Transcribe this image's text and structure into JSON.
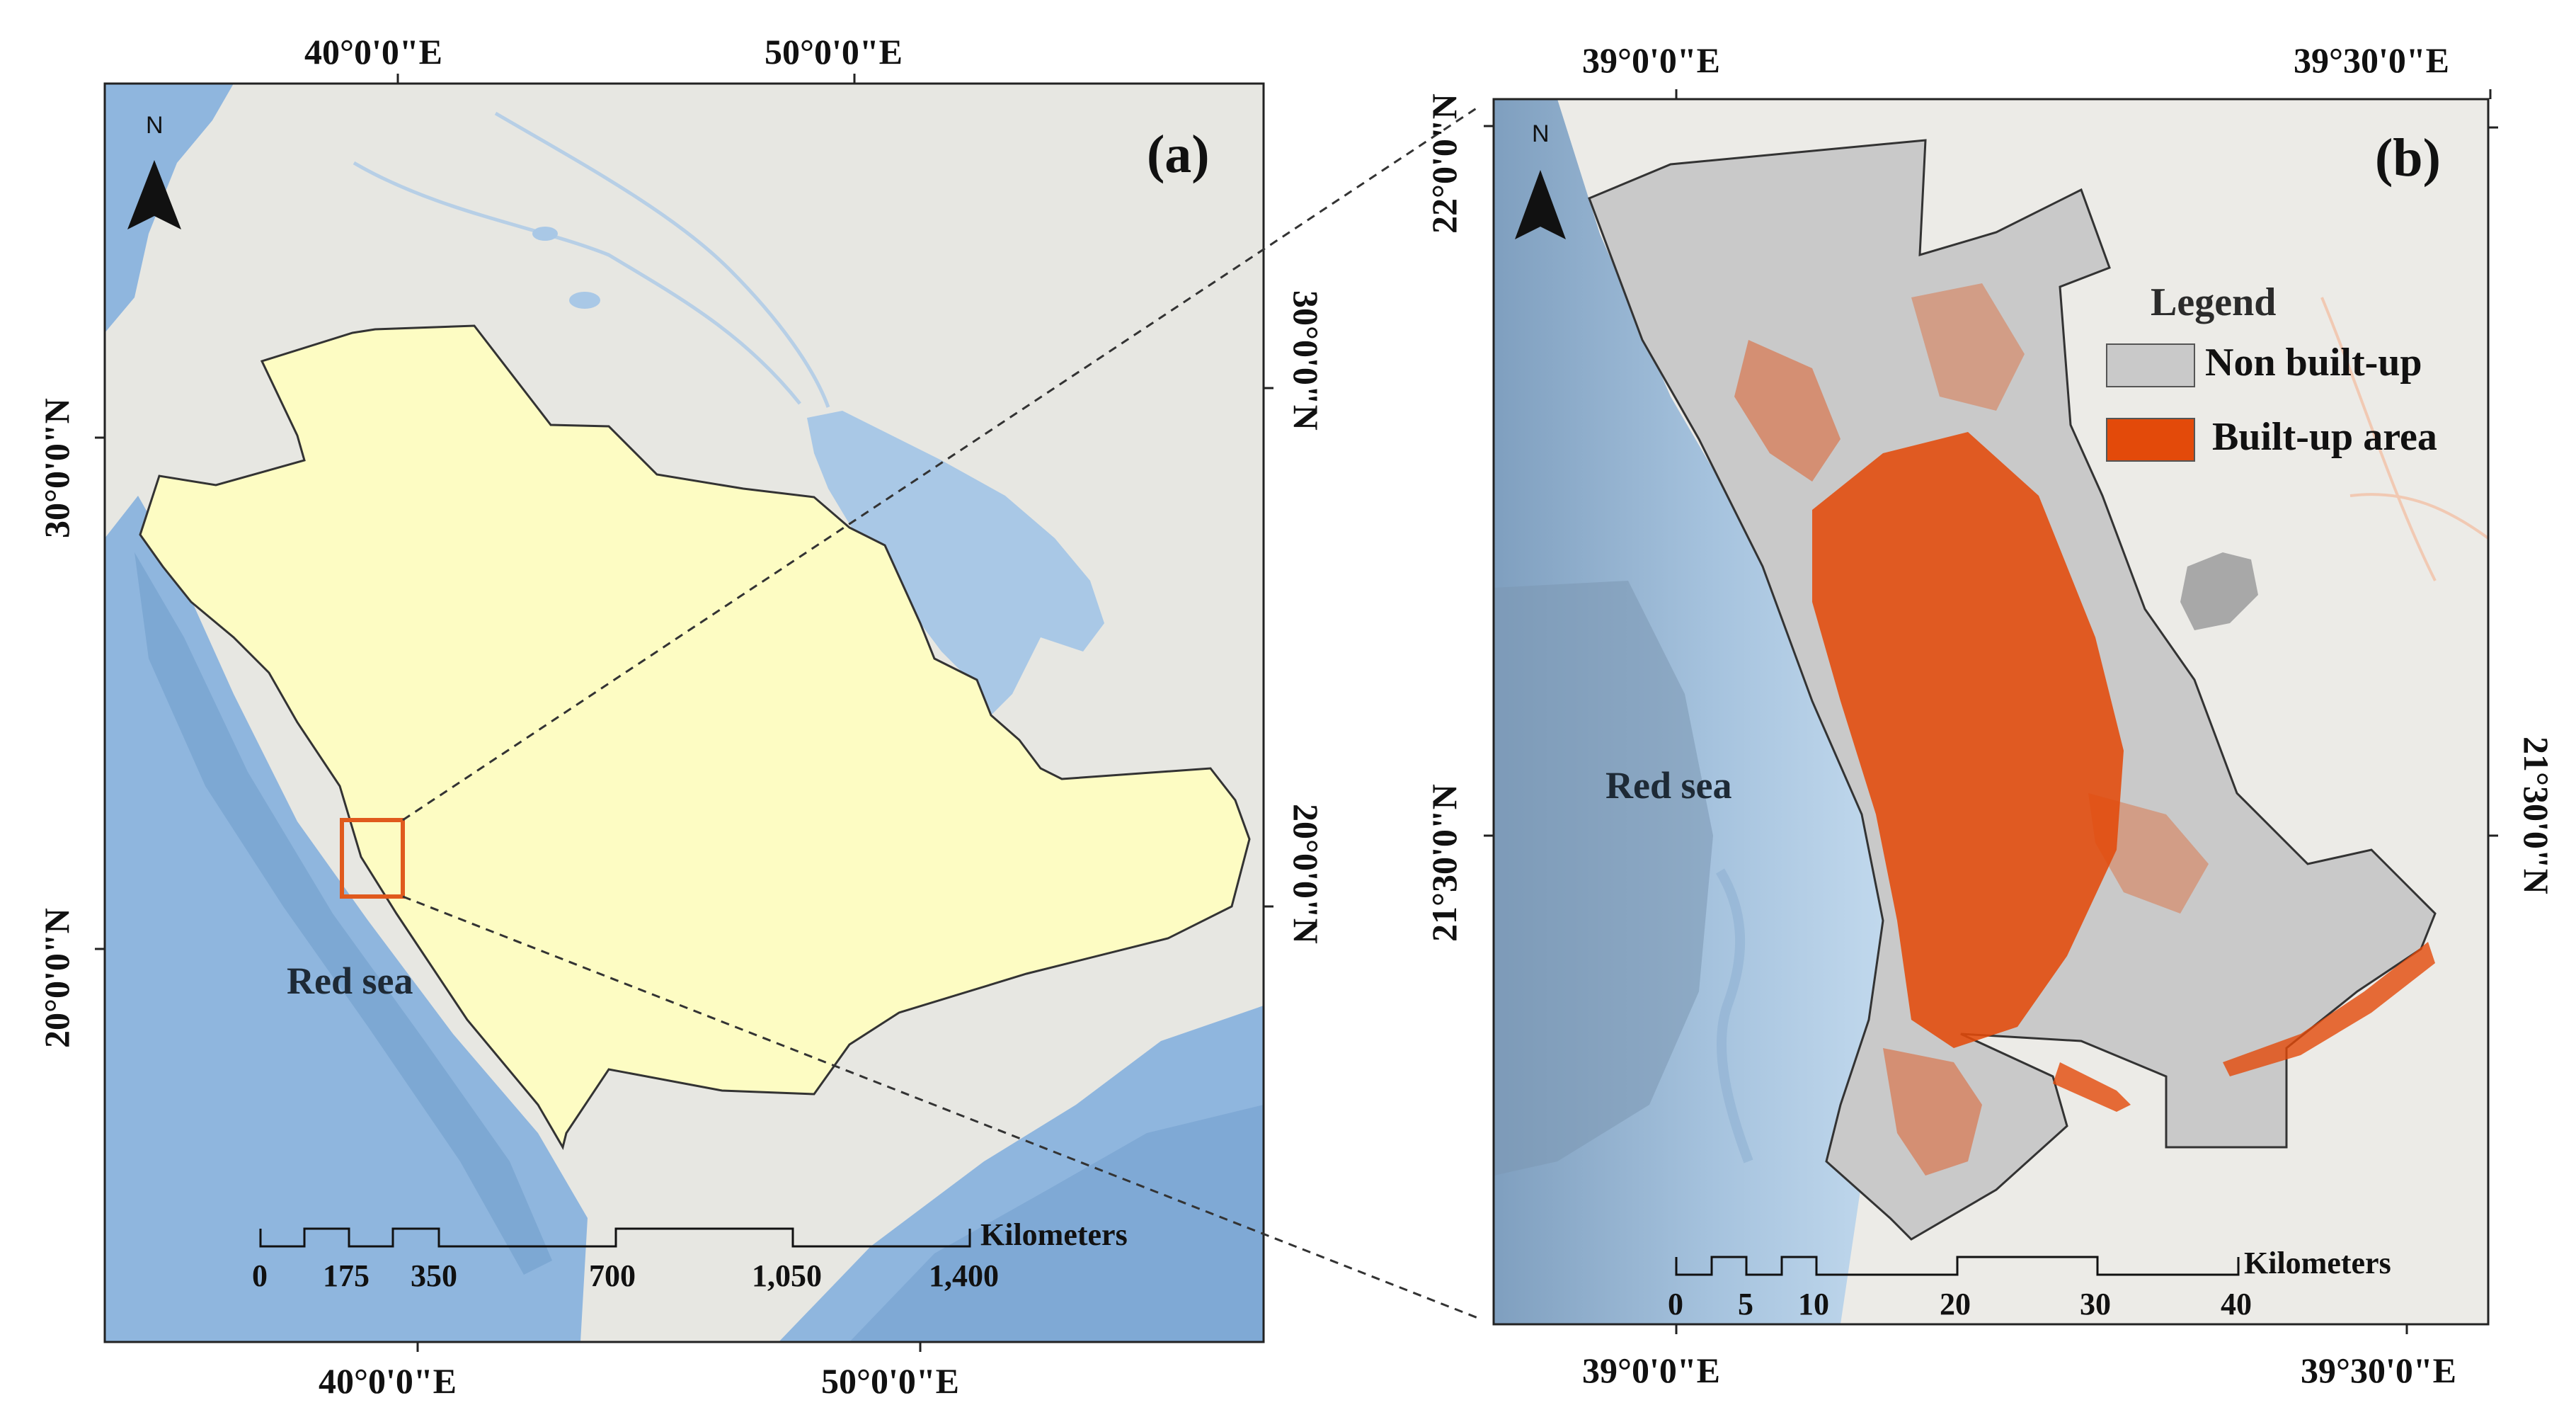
{
  "panel_a": {
    "label": "(a)",
    "top_axis": [
      "40°0'0\"E",
      "50°0'0\"E"
    ],
    "bottom_axis": [
      "40°0'0\"E",
      "50°0'0\"E"
    ],
    "left_axis": [
      "30°0'0\"N",
      "20°0'0\"N"
    ],
    "right_axis": [
      "30°0'0\"N",
      "20°0'0\"N"
    ],
    "sea_label": "Red sea",
    "north_letter": "N",
    "scale": {
      "ticks": [
        "0",
        "175",
        "350",
        "700",
        "1,050",
        "1,400"
      ],
      "unit": "Kilometers"
    },
    "colors": {
      "country_fill": "#fdfcc3",
      "sea": "#8fb6de",
      "land": "#e7e7e2",
      "highlight_box": "#e05a1d"
    }
  },
  "panel_b": {
    "label": "(b)",
    "top_axis": [
      "39°0'0\"E",
      "39°30'0\"E"
    ],
    "bottom_axis": [
      "39°0'0\"E",
      "39°30'0\"E"
    ],
    "left_axis": [
      "22°0'0\"N",
      "21°30'0\"N"
    ],
    "right_axis": [
      "21°30'0\"N"
    ],
    "sea_label": "Red sea",
    "north_letter": "N",
    "scale": {
      "ticks": [
        "0",
        "5",
        "10",
        "20",
        "30",
        "40"
      ],
      "unit": "Kilometers"
    },
    "legend": {
      "title": "Legend",
      "items": [
        {
          "label": "Non built-up",
          "color": "#c9c9c9"
        },
        {
          "label": "Built-up area",
          "color": "#e34a0a"
        }
      ]
    },
    "colors": {
      "study_area": "#c9c9c9",
      "built_up": "#e34a0a",
      "sea": "#a9c8e6",
      "land": "#ecebe7"
    }
  }
}
